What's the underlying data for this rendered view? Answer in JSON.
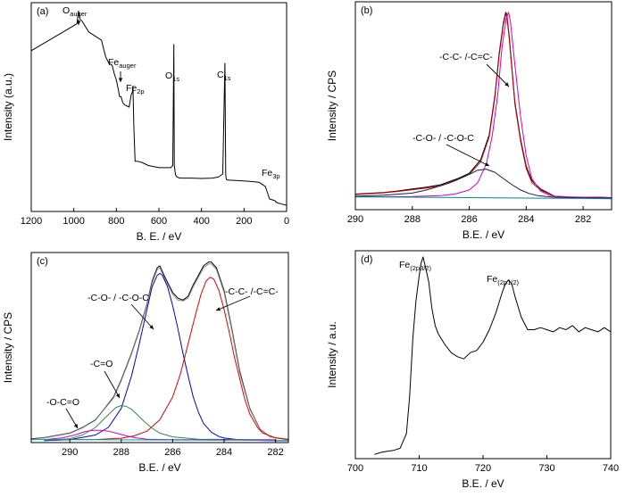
{
  "chart_data": [
    {
      "panel": "(a)",
      "type": "line",
      "xlabel": "B. E. / eV",
      "ylabel": "Intensity (a.u.)",
      "xlim": [
        1200,
        0
      ],
      "xticks": [
        1200,
        1000,
        800,
        600,
        400,
        200,
        0
      ],
      "ylim": [
        0,
        100
      ],
      "annotations": [
        {
          "text": "O",
          "sub": "auger",
          "x": 975
        },
        {
          "text": "Fe",
          "sub": "auger",
          "x": 785
        },
        {
          "text": "Fe",
          "sub": "2p",
          "x": 712
        },
        {
          "text": "O",
          "sub": "1s",
          "x": 530
        },
        {
          "text": "C",
          "sub": "1s",
          "x": 285
        },
        {
          "text": "Fe",
          "sub": "3p",
          "x": 56
        }
      ],
      "series": [
        {
          "color": "#000000",
          "x": [
            1200,
            1150,
            1100,
            1050,
            1000,
            985,
            978,
            970,
            960,
            930,
            900,
            870,
            860,
            850,
            835,
            820,
            810,
            800,
            790,
            785,
            778,
            770,
            760,
            740,
            730,
            725,
            722,
            718,
            712,
            708,
            700,
            680,
            650,
            600,
            560,
            545,
            535,
            530,
            528,
            522,
            515,
            500,
            450,
            400,
            350,
            320,
            300,
            290,
            286,
            284,
            282,
            270,
            230,
            180,
            130,
            100,
            80,
            65,
            56,
            52,
            50,
            40,
            20,
            0
          ],
          "y": [
            77,
            80,
            83,
            86,
            89,
            90,
            96,
            92,
            91,
            86,
            84,
            82,
            78,
            74,
            71,
            70,
            66,
            63,
            58,
            55,
            55,
            52,
            51,
            50,
            56,
            57,
            60,
            41,
            24,
            24,
            24,
            23.5,
            22,
            21,
            21,
            21,
            22,
            80,
            22,
            17.5,
            16.5,
            16,
            16,
            15.8,
            16,
            16.5,
            18,
            71,
            18,
            15.8,
            15.2,
            15,
            14.8,
            14.5,
            14,
            12,
            6,
            5.5,
            5.2,
            5,
            4.5,
            4,
            3.5,
            3
          ]
        }
      ]
    },
    {
      "panel": "(b)",
      "type": "line",
      "xlabel": "B.E. / eV",
      "ylabel": "Intensity / CPS",
      "xlim": [
        290,
        281
      ],
      "xticks": [
        290,
        288,
        286,
        284,
        282
      ],
      "ylim": [
        0,
        100
      ],
      "annotations": [
        {
          "text": "-C-C- /-C=C-",
          "x": 284.7
        },
        {
          "text": "-C-O- / -C-O-C",
          "x": 285.8
        }
      ],
      "series": [
        {
          "color": "#000000",
          "x": [
            290,
            289,
            288.5,
            288,
            287.5,
            287,
            286.7,
            286.4,
            286,
            285.6,
            285.3,
            285.1,
            284.95,
            284.8,
            284.72,
            284.68,
            284.6,
            284.5,
            284.4,
            284.2,
            284,
            283.8,
            283.5,
            283,
            282.5,
            282,
            281.5,
            281
          ],
          "y": [
            7.5,
            8.3,
            9,
            10,
            10.8,
            12,
            13.5,
            15,
            17.5,
            24,
            36,
            55,
            75,
            90,
            95,
            94,
            84,
            68,
            52,
            34,
            21,
            14,
            10,
            6.5,
            6,
            6,
            6,
            5.8
          ]
        },
        {
          "color": "#cc0000",
          "x": [
            290,
            289,
            288.5,
            288,
            287.5,
            287,
            286.7,
            286.4,
            286,
            285.6,
            285.3,
            285.1,
            284.95,
            284.8,
            284.72,
            284.68,
            284.6,
            284.5,
            284.4,
            284.2,
            284,
            283.8,
            283.5,
            283,
            282.5,
            282,
            281.5,
            281
          ],
          "y": [
            7.3,
            8.1,
            8.8,
            9.6,
            10.4,
            11.5,
            12.8,
            14.5,
            17,
            23,
            35,
            54,
            74,
            89,
            94,
            93,
            83,
            67,
            51,
            33,
            20,
            13,
            9.5,
            6.4,
            5.9,
            5.9,
            5.9,
            5.7
          ]
        },
        {
          "color": "#d000d0",
          "x": [
            290,
            288,
            287,
            286.5,
            286,
            285.7,
            285.4,
            285.2,
            285,
            284.85,
            284.7,
            284.62,
            284.55,
            284.4,
            284.2,
            284,
            283.8,
            283.5,
            283.2,
            283,
            282.5,
            282,
            281
          ],
          "y": [
            6.2,
            6.3,
            6.8,
            7.5,
            9.5,
            13,
            22,
            35,
            55,
            78,
            92,
            95,
            90,
            70,
            45,
            26,
            15,
            9,
            7,
            6.5,
            6.2,
            6,
            5.8
          ]
        },
        {
          "color": "#1a1a4a",
          "x": [
            290,
            289,
            288,
            287.5,
            287,
            286.5,
            286,
            285.7,
            285.4,
            285.1,
            284.8,
            284.5,
            284.2,
            283.9,
            283.6,
            283.3,
            283,
            282.5,
            282,
            281
          ],
          "y": [
            6.5,
            7,
            8,
            9.5,
            11.5,
            14,
            17,
            19,
            19.5,
            18,
            15,
            12,
            9.5,
            7.8,
            6.8,
            6.3,
            6,
            5.8,
            5.7,
            5.6
          ]
        },
        {
          "color": "#008b8b",
          "x": [
            290,
            288,
            286,
            284,
            282,
            281
          ],
          "y": [
            6.2,
            6.0,
            5.8,
            5.6,
            5.4,
            5.3
          ]
        }
      ]
    },
    {
      "panel": "(c)",
      "type": "line",
      "xlabel": "B.E. / eV",
      "ylabel": "Intensity / CPS",
      "xlim": [
        291.5,
        281.5
      ],
      "xticks": [
        290,
        288,
        286,
        284,
        282
      ],
      "ylim": [
        0,
        100
      ],
      "annotations": [
        {
          "text": "-C-C- /-C=C-",
          "x": 284.5
        },
        {
          "text": "-C-O- / -C-O-C",
          "x": 286.5
        },
        {
          "text": "-C=O",
          "x": 288.0
        },
        {
          "text": "-O-C=O",
          "x": 289.2
        }
      ],
      "series": [
        {
          "color": "#000000",
          "x": [
            291.5,
            291,
            290.5,
            290,
            289.5,
            289,
            288.7,
            288.3,
            288,
            287.6,
            287.3,
            287,
            286.8,
            286.6,
            286.5,
            286.3,
            286,
            285.8,
            285.6,
            285.4,
            285.2,
            285,
            284.8,
            284.6,
            284.5,
            284.3,
            284,
            283.7,
            283.4,
            283,
            282.6,
            282.2,
            281.5
          ],
          "y": [
            2,
            2.6,
            3.8,
            5,
            8,
            12,
            17,
            24,
            33,
            47,
            59,
            73,
            85,
            92,
            93,
            87,
            79,
            76,
            75,
            77,
            83,
            88,
            93,
            95,
            95,
            92,
            80,
            60,
            38,
            18,
            7,
            3,
            1.5
          ]
        },
        {
          "color": "#8a8a8a",
          "x": [
            291.5,
            291,
            290.5,
            290,
            289.5,
            289,
            288.7,
            288.3,
            288,
            287.6,
            287.3,
            287,
            286.8,
            286.6,
            286.5,
            286.3,
            286,
            285.8,
            285.6,
            285.4,
            285.2,
            285,
            284.8,
            284.6,
            284.5,
            284.3,
            284,
            283.7,
            283.4,
            283,
            282.6,
            282.2,
            281.5
          ],
          "y": [
            1.8,
            2.4,
            3.6,
            4.8,
            7.8,
            11.8,
            16.8,
            23.5,
            32.5,
            46.5,
            58.5,
            72.5,
            84,
            91,
            92,
            86,
            78,
            75,
            74.5,
            76,
            82,
            87,
            92,
            94,
            94,
            91,
            79,
            59,
            37,
            17.5,
            6.8,
            2.9,
            1.4
          ]
        },
        {
          "color": "#0000cc",
          "x": [
            291,
            290,
            289,
            288.5,
            288,
            287.6,
            287.3,
            287,
            286.8,
            286.6,
            286.5,
            286.4,
            286.2,
            286,
            285.8,
            285.6,
            285.4,
            285.2,
            285,
            284.8,
            284.5,
            284.2,
            284,
            283.5,
            283,
            282,
            281.5
          ],
          "y": [
            1,
            1.5,
            4,
            8,
            18,
            35,
            52,
            70,
            82,
            88,
            89,
            88,
            82,
            72,
            60,
            47,
            35,
            24,
            16,
            10,
            5.5,
            3.2,
            2.4,
            1.6,
            1.2,
            1,
            1
          ]
        },
        {
          "color": "#e00000",
          "x": [
            291,
            289,
            288,
            287.5,
            287,
            286.5,
            286,
            285.7,
            285.4,
            285.1,
            284.9,
            284.7,
            284.55,
            284.4,
            284.2,
            284,
            283.8,
            283.6,
            283.4,
            283.2,
            283,
            282.7,
            282.5,
            282,
            281.5
          ],
          "y": [
            1.5,
            1.6,
            2.3,
            3.5,
            6,
            12,
            24,
            36,
            52,
            68,
            78,
            85,
            87,
            86,
            80,
            70,
            58,
            45,
            34,
            23,
            15,
            8,
            5,
            2.5,
            1.8
          ]
        },
        {
          "color": "#2e8b57",
          "x": [
            291,
            290,
            289.5,
            289,
            288.7,
            288.4,
            288.2,
            288,
            287.8,
            287.6,
            287.4,
            287.1,
            286.8,
            286.5,
            286,
            285,
            283
          ],
          "y": [
            1.2,
            2,
            4,
            8,
            12,
            16,
            18.5,
            19.5,
            19,
            17.5,
            15,
            11,
            7.5,
            5,
            3,
            1.8,
            1.5
          ]
        },
        {
          "color": "#cc00cc",
          "x": [
            291,
            290.3,
            289.8,
            289.4,
            289.1,
            288.8,
            288.5,
            288.2,
            287.8,
            287.4,
            287,
            286,
            284,
            282
          ],
          "y": [
            1.5,
            2.5,
            4,
            5.8,
            6.5,
            6.5,
            6,
            5,
            3.5,
            2.4,
            1.8,
            1.5,
            1.5,
            1.5
          ]
        },
        {
          "color": "#00a0a0",
          "x": [
            291.5,
            289,
            287,
            285,
            283,
            281.5
          ],
          "y": [
            1.6,
            1.5,
            1.4,
            1.3,
            1.2,
            1.1
          ]
        }
      ]
    },
    {
      "panel": "(d)",
      "type": "line",
      "xlabel": "B.E. / eV",
      "ylabel": "Intensity / a.u.",
      "xlim": [
        700,
        740
      ],
      "xticks": [
        700,
        710,
        720,
        730,
        740
      ],
      "ylim": [
        0,
        100
      ],
      "annotations": [
        {
          "text": "Fe",
          "sub": "(2p3/2)",
          "x": 710.6
        },
        {
          "text": "Fe",
          "sub": "(2p1/2)",
          "x": 724.0
        }
      ],
      "series": [
        {
          "color": "#000000",
          "x": [
            703,
            704,
            705,
            706,
            707,
            708,
            708.5,
            709,
            709.5,
            710,
            710.3,
            710.6,
            711,
            711.5,
            712,
            712.5,
            713,
            714,
            715,
            716,
            717,
            718,
            719,
            720,
            721,
            722,
            723,
            723.5,
            724,
            724.5,
            725,
            726,
            727,
            728,
            729,
            730,
            731,
            732,
            733,
            734,
            735,
            736,
            737,
            738,
            739,
            740
          ],
          "y": [
            2,
            3,
            3.5,
            4,
            5,
            12,
            30,
            58,
            76,
            88,
            94,
            97,
            92,
            85,
            72,
            64,
            60,
            55,
            51,
            49,
            48,
            51,
            52,
            56,
            62,
            70,
            80,
            84,
            86,
            84,
            78,
            68,
            62,
            62,
            63,
            62,
            61,
            63,
            62,
            64,
            61,
            63,
            62,
            61,
            63,
            61
          ]
        }
      ]
    }
  ]
}
